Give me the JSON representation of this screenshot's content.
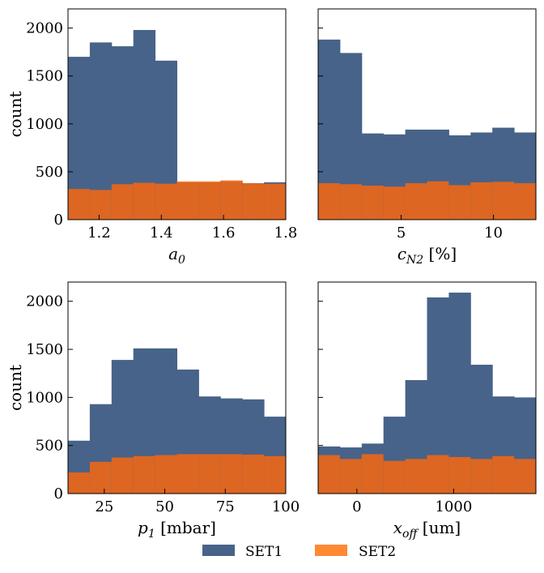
{
  "chart_data": [
    {
      "type": "histogram",
      "xlabel": "a_0",
      "xlabel_parts": [
        {
          "t": "a"
        },
        {
          "t": "0",
          "sub": true
        }
      ],
      "ylabel": "count",
      "xlim": [
        1.1,
        1.8
      ],
      "ylim": [
        0,
        2200
      ],
      "xticks": [
        1.2,
        1.4,
        1.6,
        1.8
      ],
      "xtick_labels": [
        "1.2",
        "1.4",
        "1.6",
        "1.8"
      ],
      "yticks": [
        0,
        500,
        1000,
        1500,
        2000
      ],
      "ytick_labels": [
        "0",
        "500",
        "1000",
        "1500",
        "2000"
      ],
      "show_yticklabels": true,
      "bin_edges": [
        1.1,
        1.17,
        1.24,
        1.31,
        1.38,
        1.45,
        1.52,
        1.59,
        1.66,
        1.73,
        1.8
      ],
      "series": [
        {
          "name": "SET1",
          "values": [
            1700,
            1850,
            1810,
            1980,
            1660,
            390,
            390,
            400,
            380,
            390
          ]
        },
        {
          "name": "SET2",
          "values": [
            320,
            310,
            370,
            385,
            375,
            400,
            400,
            410,
            380,
            375
          ]
        }
      ]
    },
    {
      "type": "histogram",
      "xlabel": "c_N2 [%]",
      "xlabel_parts": [
        {
          "t": "c"
        },
        {
          "t": "N2",
          "sub": true
        },
        {
          "t": " [%]"
        }
      ],
      "ylabel": "",
      "xlim": [
        0.5,
        12.3
      ],
      "ylim": [
        0,
        2200
      ],
      "xticks": [
        5,
        10
      ],
      "xtick_labels": [
        "5",
        "10"
      ],
      "yticks": [
        0,
        500,
        1000,
        1500,
        2000
      ],
      "ytick_labels": [
        "0",
        "500",
        "1000",
        "1500",
        "2000"
      ],
      "show_yticklabels": false,
      "bin_edges": [
        0.5,
        1.68,
        2.86,
        4.04,
        5.22,
        6.4,
        7.58,
        8.76,
        9.94,
        11.12,
        12.3
      ],
      "series": [
        {
          "name": "SET1",
          "values": [
            1880,
            1740,
            900,
            890,
            940,
            940,
            880,
            910,
            960,
            910
          ]
        },
        {
          "name": "SET2",
          "values": [
            380,
            370,
            355,
            345,
            380,
            400,
            360,
            390,
            395,
            380
          ]
        }
      ]
    },
    {
      "type": "histogram",
      "xlabel": "p_1 [mbar]",
      "xlabel_parts": [
        {
          "t": "p"
        },
        {
          "t": "1",
          "sub": true
        },
        {
          "t": " [mbar]"
        }
      ],
      "ylabel": "count",
      "xlim": [
        10,
        100
      ],
      "ylim": [
        0,
        2200
      ],
      "xticks": [
        25,
        50,
        75,
        100
      ],
      "xtick_labels": [
        "25",
        "50",
        "75",
        "100"
      ],
      "yticks": [
        0,
        500,
        1000,
        1500,
        2000
      ],
      "ytick_labels": [
        "0",
        "500",
        "1000",
        "1500",
        "2000"
      ],
      "show_yticklabels": true,
      "bin_edges": [
        10,
        19,
        28,
        37,
        46,
        55,
        64,
        73,
        82,
        91,
        100
      ],
      "series": [
        {
          "name": "SET1",
          "values": [
            550,
            930,
            1390,
            1510,
            1510,
            1290,
            1010,
            990,
            980,
            800
          ]
        },
        {
          "name": "SET2",
          "values": [
            220,
            330,
            375,
            390,
            400,
            410,
            410,
            410,
            405,
            390
          ]
        }
      ]
    },
    {
      "type": "histogram",
      "xlabel": "x_off [um]",
      "xlabel_parts": [
        {
          "t": "x"
        },
        {
          "t": "off",
          "sub": true
        },
        {
          "t": " [um]"
        }
      ],
      "ylabel": "",
      "xlim": [
        -400,
        1850
      ],
      "ylim": [
        0,
        2200
      ],
      "xticks": [
        0,
        1000
      ],
      "xtick_labels": [
        "0",
        "1000"
      ],
      "yticks": [
        0,
        500,
        1000,
        1500,
        2000
      ],
      "ytick_labels": [
        "0",
        "500",
        "1000",
        "1500",
        "2000"
      ],
      "show_yticklabels": false,
      "bin_edges": [
        -400,
        -175,
        50,
        275,
        500,
        725,
        950,
        1175,
        1400,
        1625,
        1850
      ],
      "series": [
        {
          "name": "SET1",
          "values": [
            490,
            480,
            520,
            800,
            1180,
            2040,
            2090,
            1340,
            1010,
            1000
          ]
        },
        {
          "name": "SET2",
          "values": [
            400,
            360,
            410,
            340,
            360,
            400,
            380,
            360,
            390,
            360
          ]
        }
      ]
    }
  ],
  "legend": {
    "placement": "bottom-center",
    "entries": [
      {
        "label": "SET1",
        "color": "#476389"
      },
      {
        "label": "SET2",
        "color": "#ff8833"
      }
    ]
  },
  "colors": {
    "set1": "#476389",
    "set2": "#ff8833",
    "set2_overlap": "#dd6622"
  }
}
